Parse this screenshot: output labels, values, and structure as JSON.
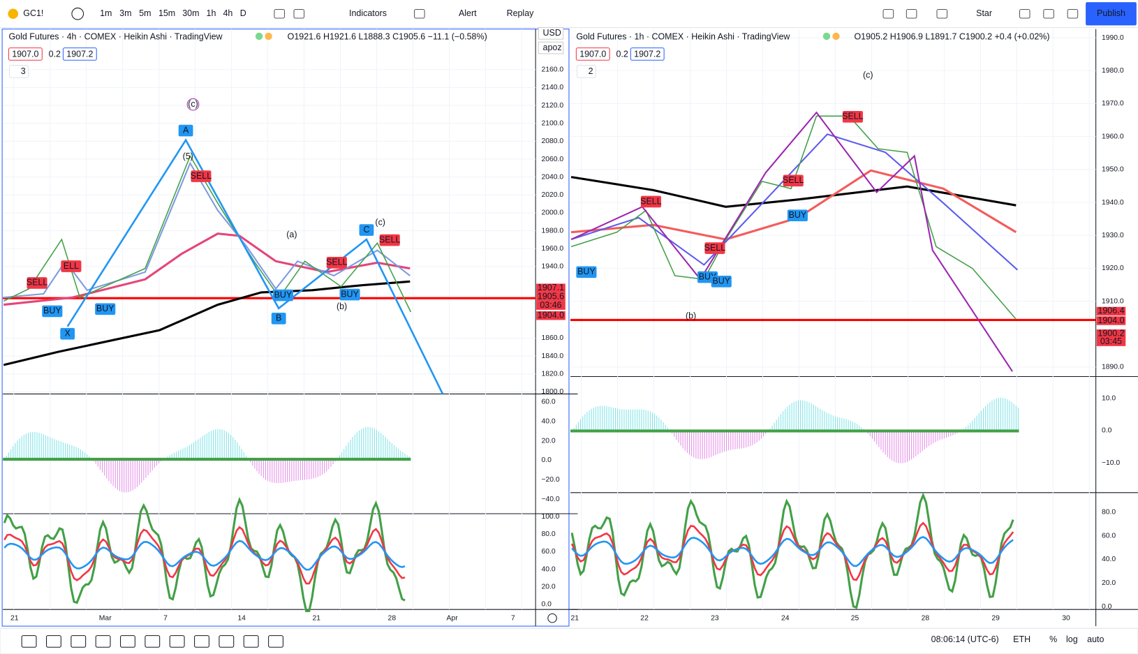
{
  "toolbar": {
    "symbol": "GC1!",
    "intervals": [
      "1m",
      "3m",
      "5m",
      "15m",
      "30m",
      "1h",
      "4h",
      "D"
    ],
    "indicators": "Indicators",
    "alert": "Alert",
    "replay": "Replay",
    "layout": "Star",
    "publish": "Publish"
  },
  "charts": [
    {
      "title": "Gold Futures · 4h · COMEX · Heikin Ashi · TradingView",
      "ohlc": "O1921.6 H1921.6 L1888.3 C1905.6 −11.1 (−0.58%)",
      "bid": "1907.0",
      "spread": "0.2",
      "ask": "1907.2",
      "indicator_count": "3",
      "currency": "USD",
      "scale_mode": "apoz",
      "price_axis": [
        "2160.0",
        "2140.0",
        "2120.0",
        "2100.0",
        "2080.0",
        "2060.0",
        "2040.0",
        "2020.0",
        "2000.0",
        "1980.0",
        "1960.0",
        "1940.0",
        "1860.0",
        "1840.0",
        "1820.0",
        "1800.0"
      ],
      "price_labels": [
        "1907.1",
        "1905.6",
        "03:46",
        "1904.0"
      ],
      "osc_axis": [
        "60.0",
        "40.0",
        "20.0",
        "0.0",
        "−20.0",
        "−40.0"
      ],
      "rsi_axis": [
        "100.0",
        "80.0",
        "60.0",
        "40.0",
        "20.0",
        "0.0"
      ],
      "time_axis": [
        "21",
        "Mar",
        "7",
        "14",
        "21",
        "28",
        "Apr",
        "7"
      ],
      "annotations": [
        "(c)",
        "A",
        "(a)",
        "C",
        "(c)",
        "(b)",
        "B",
        "X",
        "SELL",
        "SELL",
        "SELL",
        "SELL",
        "BUY",
        "BUY",
        "BUY",
        "BUY",
        "ELL",
        "(5)"
      ]
    },
    {
      "title": "Gold Futures · 1h · COMEX · Heikin Ashi · TradingView",
      "ohlc": "O1905.2 H1906.9 L1891.7 C1900.2 +0.4 (+0.02%)",
      "bid": "1907.0",
      "spread": "0.2",
      "ask": "1907.2",
      "indicator_count": "2",
      "price_axis": [
        "1990.0",
        "1980.0",
        "1970.0",
        "1960.0",
        "1950.0",
        "1940.0",
        "1930.0",
        "1920.0",
        "1910.0",
        "1890.0"
      ],
      "price_labels": [
        "1906.4",
        "1904.0",
        "1900.2",
        "03:45"
      ],
      "osc_axis": [
        "10.0",
        "0.0",
        "−10.0"
      ],
      "rsi_axis": [
        "80.0",
        "60.0",
        "40.0",
        "20.0",
        "0.0"
      ],
      "time_axis": [
        "21",
        "22",
        "23",
        "24",
        "25",
        "28",
        "29",
        "30"
      ],
      "annotations": [
        "(c)",
        "(b)",
        "SELL",
        "SELL",
        "SELL",
        "SELL",
        "BUY",
        "BUY",
        "BUY",
        "BUY"
      ]
    }
  ],
  "status": {
    "clock": "08:06:14 (UTC-6)",
    "session": "ETH",
    "percent": "%",
    "log": "log",
    "auto": "auto"
  }
}
